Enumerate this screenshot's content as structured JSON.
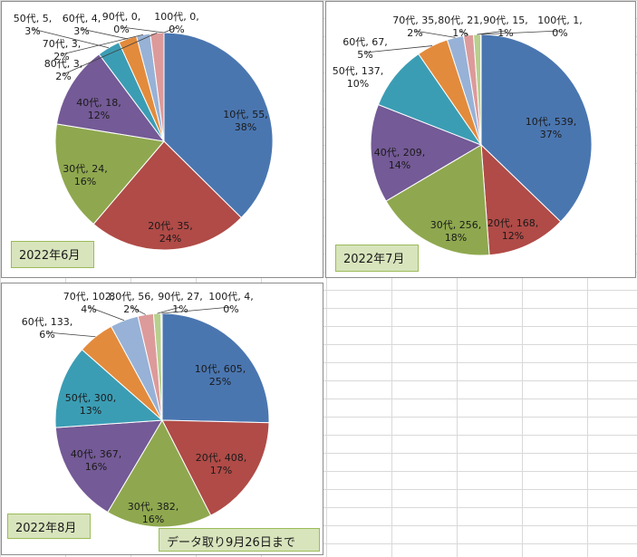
{
  "colors": [
    "#4a76b0",
    "#b04b47",
    "#8fa84f",
    "#745a96",
    "#3b9db4",
    "#e38b3c",
    "#97b2d6",
    "#dd9a9a",
    "#b7d08d",
    "#b2a3c8"
  ],
  "panels": [
    {
      "id": "jun",
      "label": "2022年6月"
    },
    {
      "id": "jul",
      "label": "2022年7月"
    },
    {
      "id": "aug",
      "label": "2022年8月",
      "note": "データ取り9月26日まで"
    }
  ],
  "chart_data": [
    {
      "type": "pie",
      "title": "",
      "categories": [
        "10代",
        "20代",
        "30代",
        "40代",
        "50代",
        "60代",
        "70代",
        "80代",
        "90代",
        "100代"
      ],
      "values": [
        55,
        35,
        24,
        18,
        5,
        4,
        3,
        3,
        0,
        0
      ],
      "percent_labels": [
        "38%",
        "24%",
        "16%",
        "12%",
        "3%",
        "3%",
        "2%",
        "2%",
        "0%",
        "0%"
      ]
    },
    {
      "type": "pie",
      "title": "",
      "categories": [
        "10代",
        "20代",
        "30代",
        "40代",
        "50代",
        "60代",
        "70代",
        "80代",
        "90代",
        "100代"
      ],
      "values": [
        539,
        168,
        256,
        209,
        137,
        67,
        35,
        21,
        15,
        1
      ],
      "percent_labels": [
        "37%",
        "12%",
        "18%",
        "14%",
        "10%",
        "5%",
        "2%",
        "1%",
        "1%",
        "0%"
      ]
    },
    {
      "type": "pie",
      "title": "",
      "categories": [
        "10代",
        "20代",
        "30代",
        "40代",
        "50代",
        "60代",
        "70代",
        "80代",
        "90代",
        "100代"
      ],
      "values": [
        605,
        408,
        382,
        367,
        300,
        133,
        102,
        56,
        27,
        4
      ],
      "percent_labels": [
        "25%",
        "17%",
        "16%",
        "16%",
        "13%",
        "6%",
        "4%",
        "2%",
        "1%",
        "0%"
      ]
    }
  ]
}
